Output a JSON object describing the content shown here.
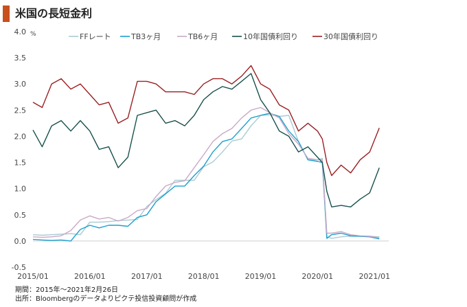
{
  "title": "米国の長短金利",
  "accent_color": "#c8501e",
  "footnote": {
    "period": "期間：2015年～2021年2月26日",
    "source": "出所：Bloombergのデータよりピクテ投信投資顧問が作成"
  },
  "chart_data": {
    "type": "line",
    "unit": "%",
    "ylim": [
      -0.5,
      4.0
    ],
    "yticks": [
      "4.0",
      "3.5",
      "3.0",
      "2.5",
      "2.0",
      "1.5",
      "1.0",
      "0.5",
      "0.0",
      "-0.5"
    ],
    "xticks": [
      "2015/01",
      "2016/01",
      "2017/01",
      "2018/01",
      "2019/01",
      "2020/01",
      "2021/01"
    ],
    "x": [
      "2015-01",
      "2015-03",
      "2015-05",
      "2015-07",
      "2015-09",
      "2015-11",
      "2016-01",
      "2016-03",
      "2016-05",
      "2016-07",
      "2016-09",
      "2016-11",
      "2017-01",
      "2017-03",
      "2017-05",
      "2017-07",
      "2017-09",
      "2017-11",
      "2018-01",
      "2018-03",
      "2018-05",
      "2018-07",
      "2018-09",
      "2018-11",
      "2019-01",
      "2019-03",
      "2019-05",
      "2019-07",
      "2019-09",
      "2019-11",
      "2020-01",
      "2020-02",
      "2020-03",
      "2020-04",
      "2020-06",
      "2020-08",
      "2020-10",
      "2020-12",
      "2021-02"
    ],
    "series": [
      {
        "name": "FFレート",
        "color": "#a9cbd3",
        "values": [
          0.12,
          0.11,
          0.12,
          0.13,
          0.14,
          0.12,
          0.36,
          0.36,
          0.37,
          0.39,
          0.4,
          0.41,
          0.66,
          0.79,
          0.91,
          1.16,
          1.16,
          1.16,
          1.42,
          1.51,
          1.7,
          1.91,
          1.95,
          2.2,
          2.4,
          2.41,
          2.38,
          2.4,
          1.9,
          1.55,
          1.55,
          1.58,
          0.08,
          0.05,
          0.08,
          0.09,
          0.09,
          0.09,
          0.08
        ]
      },
      {
        "name": "TB3ヶ月",
        "color": "#1a9fd0",
        "values": [
          0.03,
          0.02,
          0.01,
          0.02,
          0.0,
          0.22,
          0.3,
          0.25,
          0.3,
          0.3,
          0.28,
          0.45,
          0.5,
          0.75,
          0.9,
          1.05,
          1.05,
          1.25,
          1.43,
          1.7,
          1.9,
          1.95,
          2.15,
          2.35,
          2.4,
          2.44,
          2.38,
          2.1,
          1.9,
          1.55,
          1.52,
          1.5,
          0.05,
          0.12,
          0.15,
          0.1,
          0.09,
          0.08,
          0.04
        ]
      },
      {
        "name": "TB6ヶ月",
        "color": "#c9a9c6",
        "values": [
          0.08,
          0.07,
          0.08,
          0.1,
          0.2,
          0.4,
          0.48,
          0.42,
          0.45,
          0.38,
          0.45,
          0.58,
          0.62,
          0.85,
          1.05,
          1.12,
          1.15,
          1.4,
          1.65,
          1.9,
          2.05,
          2.15,
          2.35,
          2.5,
          2.55,
          2.45,
          2.35,
          2.05,
          1.85,
          1.58,
          1.55,
          1.55,
          0.15,
          0.15,
          0.18,
          0.12,
          0.1,
          0.09,
          0.06
        ]
      },
      {
        "name": "10年国債利回り",
        "color": "#17504b",
        "values": [
          2.12,
          1.8,
          2.2,
          2.3,
          2.1,
          2.3,
          2.1,
          1.75,
          1.8,
          1.4,
          1.6,
          2.4,
          2.45,
          2.5,
          2.25,
          2.3,
          2.2,
          2.4,
          2.7,
          2.85,
          2.95,
          2.9,
          3.05,
          3.2,
          2.7,
          2.45,
          2.1,
          2.0,
          1.7,
          1.8,
          1.6,
          1.5,
          0.95,
          0.65,
          0.68,
          0.65,
          0.8,
          0.92,
          1.4
        ]
      },
      {
        "name": "30年国債利回り",
        "color": "#991f22",
        "values": [
          2.65,
          2.55,
          3.0,
          3.1,
          2.9,
          3.0,
          2.8,
          2.6,
          2.65,
          2.25,
          2.35,
          3.05,
          3.05,
          3.0,
          2.85,
          2.85,
          2.85,
          2.8,
          3.0,
          3.1,
          3.1,
          3.0,
          3.15,
          3.35,
          3.0,
          2.9,
          2.6,
          2.5,
          2.1,
          2.25,
          2.1,
          1.95,
          1.5,
          1.25,
          1.45,
          1.3,
          1.55,
          1.7,
          2.16
        ]
      }
    ]
  }
}
